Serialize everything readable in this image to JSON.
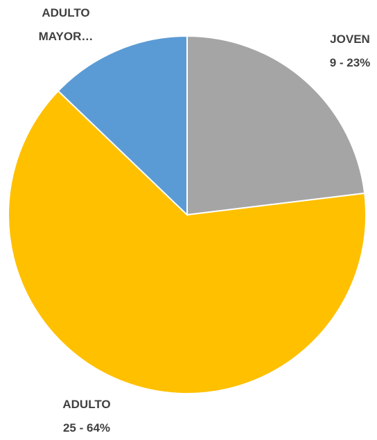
{
  "chart_data": {
    "type": "pie",
    "categories": [
      "JOVEN",
      "ADULTO",
      "ADULTO MAYOR…"
    ],
    "values": [
      9,
      25,
      5
    ],
    "value_labels": [
      "9 - 23%",
      "25 - 64%",
      null
    ],
    "colors": [
      "#a5a5a5",
      "#ffc000",
      "#5b9bd5"
    ]
  }
}
